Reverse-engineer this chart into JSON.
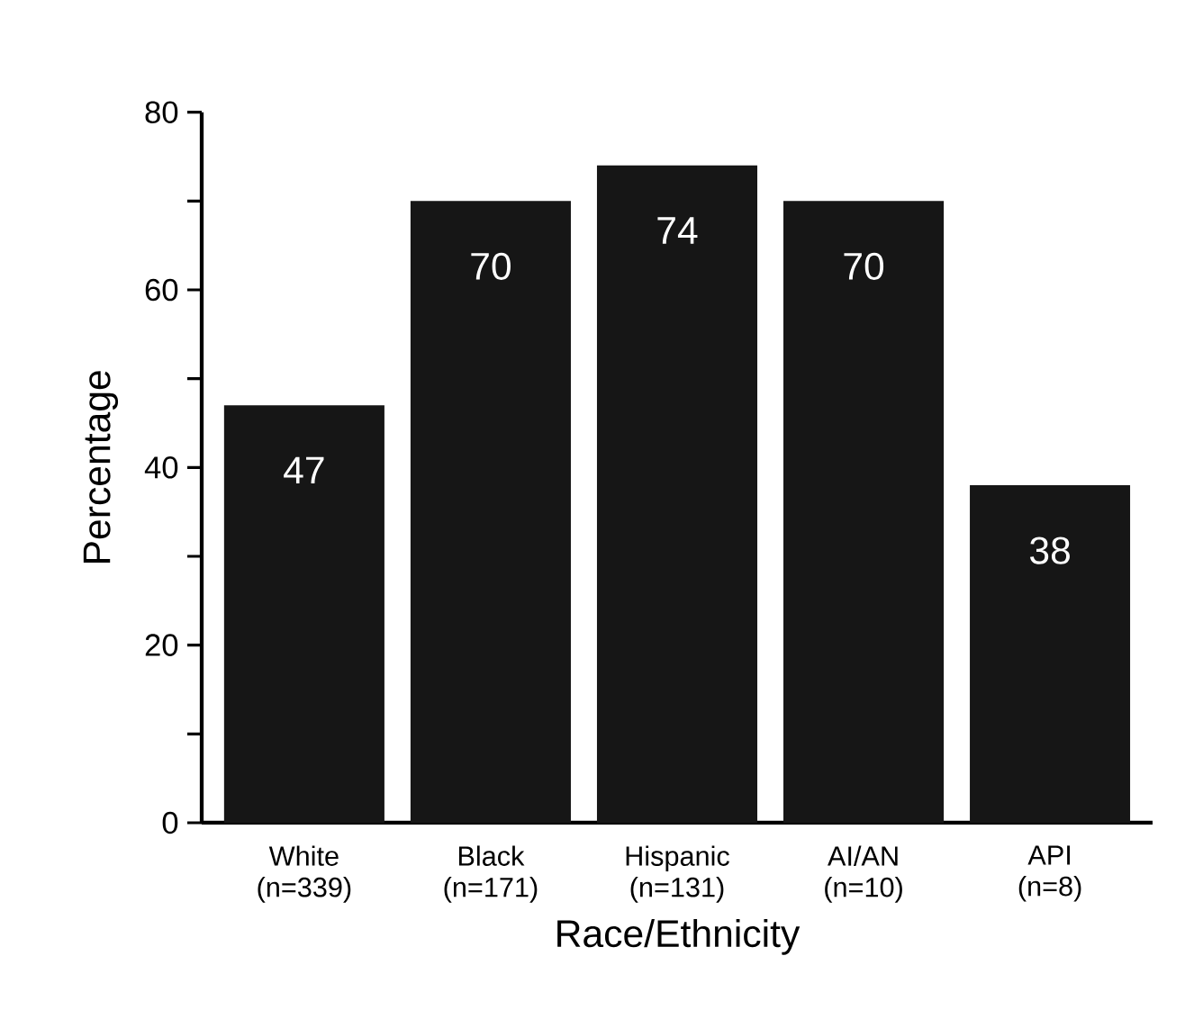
{
  "chart_data": {
    "type": "bar",
    "xlabel": "Race/Ethnicity",
    "ylabel": "Percentage",
    "categories": [
      "White (n=339)",
      "Black (n=171)",
      "Hispanic (n=131)",
      "AI/AN (n=10)",
      "API (n=8)"
    ],
    "values": [
      47,
      70,
      74,
      70,
      38
    ],
    "color": "#161616",
    "data_labels": true,
    "ylim": [
      0,
      80
    ],
    "yticks": [
      0,
      {
        "value": 10,
        "label": null
      },
      20,
      {
        "value": 30,
        "label": null
      },
      40,
      {
        "value": 50,
        "label": null
      },
      60,
      {
        "value": 70,
        "label": null
      },
      80
    ],
    "grid": false
  }
}
